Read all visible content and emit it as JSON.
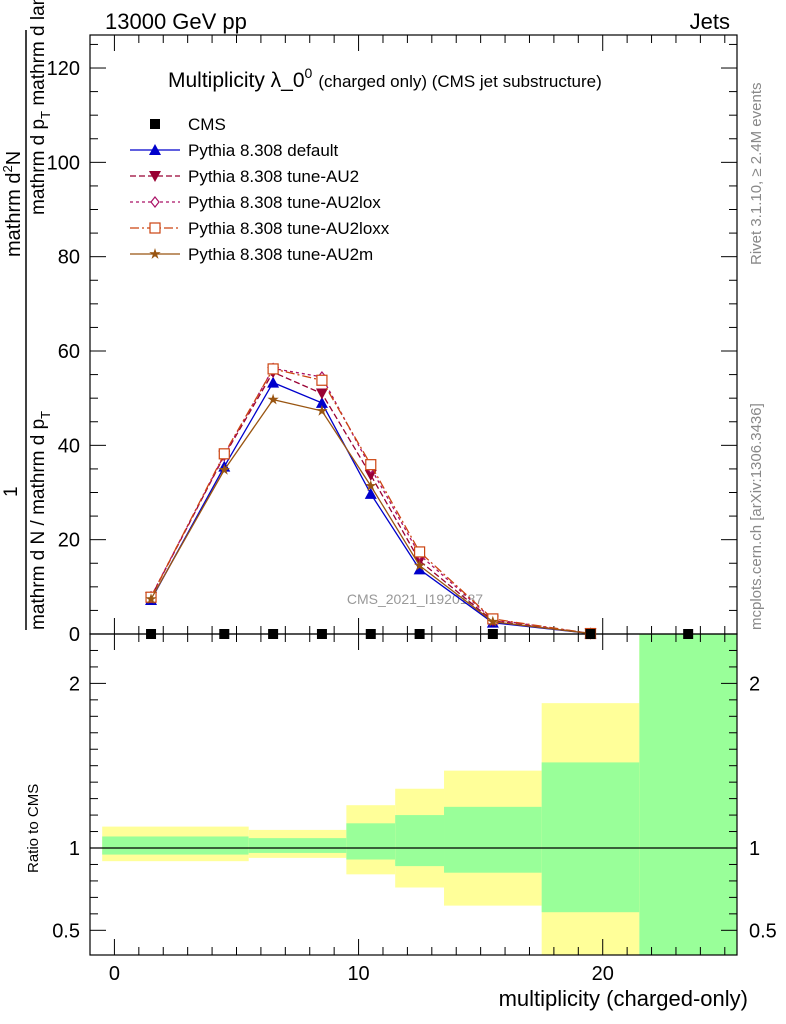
{
  "header": {
    "left": "13000 GeV pp",
    "right": "Jets"
  },
  "side_labels": {
    "rivet": "Rivet 3.1.10, ≥ 2.4M events",
    "mcplots": "mcplots.cern.ch [arXiv:1306.3436]"
  },
  "watermark": "CMS_2021_I1920187",
  "chart_data": {
    "type": "line",
    "title_main": "Multiplicity λ_0",
    "title_sup": "0",
    "title_rest": "(charged only) (CMS jet substructure)",
    "ylabel": {
      "numerator": "mathrm d",
      "numerator_sup": "2",
      "numerator_end": "N",
      "prefactor": "1",
      "denom_top": "mathrm d p",
      "denom_top_sub": "T",
      "denom_top_end": " mathrm d lambda",
      "denom_bottom": "mathrm d N / mathrm d p",
      "denom_bottom_sub": "T"
    },
    "ratio_ylabel": "Ratio to CMS",
    "xlabel": "multiplicity (charged-only)",
    "xlim": [
      -1,
      25.5
    ],
    "ylim": [
      0,
      127
    ],
    "ratio_ylim": [
      0.35,
      2.3
    ],
    "x_ticks": [
      0,
      10,
      20
    ],
    "y_ticks": [
      0,
      20,
      40,
      60,
      80,
      100,
      120
    ],
    "ratio_ticks": [
      0.5,
      1,
      2
    ],
    "legend": {
      "placement": "top-left",
      "entries": [
        {
          "label": "CMS",
          "color": "#000000",
          "marker": "square"
        },
        {
          "label": "Pythia 8.308 default",
          "color": "#0000cc",
          "marker": "triangle-up"
        },
        {
          "label": "Pythia 8.308 tune-AU2",
          "color": "#990033",
          "marker": "triangle-down"
        },
        {
          "label": "Pythia 8.308 tune-AU2lox",
          "color": "#aa1166",
          "marker": "diamond-open"
        },
        {
          "label": "Pythia 8.308 tune-AU2loxx",
          "color": "#cc4411",
          "marker": "square-open"
        },
        {
          "label": "Pythia 8.308 tune-AU2m",
          "color": "#995511",
          "marker": "star"
        }
      ]
    },
    "cms": {
      "x": [
        1.5,
        4.5,
        6.5,
        8.5,
        10.5,
        12.5,
        15.5,
        19.5,
        23.5
      ],
      "y": [
        0,
        0,
        0,
        0,
        0,
        0,
        0,
        0,
        0
      ]
    },
    "series": [
      {
        "name": "Pythia 8.308 default",
        "color": "#0000cc",
        "dash": "",
        "marker": "triangle-up",
        "x": [
          1.5,
          4.5,
          6.5,
          8.5,
          10.5,
          12.5,
          15.5,
          19.5
        ],
        "y": [
          7.2,
          35.5,
          53.3,
          49.0,
          29.7,
          13.7,
          2.4,
          0.1
        ]
      },
      {
        "name": "Pythia 8.308 tune-AU2",
        "color": "#990033",
        "dash": "6,3",
        "marker": "triangle-down",
        "x": [
          1.5,
          4.5,
          6.5,
          8.5,
          10.5,
          12.5,
          15.5,
          19.5
        ],
        "y": [
          7.8,
          37.8,
          55.5,
          51.0,
          33.7,
          15.5,
          2.8,
          0.1
        ]
      },
      {
        "name": "Pythia 8.308 tune-AU2lox",
        "color": "#aa1166",
        "dash": "3,3",
        "marker": "diamond-open",
        "x": [
          1.5,
          4.5,
          6.5,
          8.5,
          10.5,
          12.5,
          15.5,
          19.5
        ],
        "y": [
          7.9,
          38.0,
          56.3,
          54.5,
          35.2,
          16.8,
          3.1,
          0.1
        ]
      },
      {
        "name": "Pythia 8.308 tune-AU2loxx",
        "color": "#cc4411",
        "dash": "9,3,2,3",
        "marker": "square-open",
        "x": [
          1.5,
          4.5,
          6.5,
          8.5,
          10.5,
          12.5,
          15.5,
          19.5
        ],
        "y": [
          7.8,
          38.2,
          56.2,
          53.8,
          35.9,
          17.4,
          3.2,
          0.1
        ]
      },
      {
        "name": "Pythia 8.308 tune-AU2m",
        "color": "#995511",
        "dash": "",
        "marker": "star",
        "x": [
          1.5,
          4.5,
          6.5,
          8.5,
          10.5,
          12.5,
          15.5,
          19.5
        ],
        "y": [
          7.4,
          34.8,
          49.7,
          47.3,
          31.4,
          14.5,
          2.6,
          0.1
        ]
      }
    ],
    "ratio_bands": [
      {
        "x0": -0.5,
        "x1": 5.5,
        "yellow": [
          0.92,
          1.13
        ],
        "green": [
          0.96,
          1.07
        ]
      },
      {
        "x0": 5.5,
        "x1": 9.5,
        "yellow": [
          0.94,
          1.11
        ],
        "green": [
          0.97,
          1.06
        ]
      },
      {
        "x0": 9.5,
        "x1": 11.5,
        "yellow": [
          0.84,
          1.26
        ],
        "green": [
          0.93,
          1.15
        ]
      },
      {
        "x0": 11.5,
        "x1": 13.5,
        "yellow": [
          0.76,
          1.36
        ],
        "green": [
          0.89,
          1.2
        ]
      },
      {
        "x0": 13.5,
        "x1": 17.5,
        "yellow": [
          0.65,
          1.47
        ],
        "green": [
          0.85,
          1.25
        ]
      },
      {
        "x0": 17.5,
        "x1": 21.5,
        "yellow": [
          0.35,
          1.88
        ],
        "green": [
          0.61,
          1.52
        ]
      },
      {
        "x0": 21.5,
        "x1": 25.5,
        "yellow": [
          0.35,
          2.3
        ],
        "green": [
          0.35,
          2.3
        ]
      }
    ],
    "colors": {
      "yellow": "#ffff99",
      "green": "#99ff99"
    }
  }
}
